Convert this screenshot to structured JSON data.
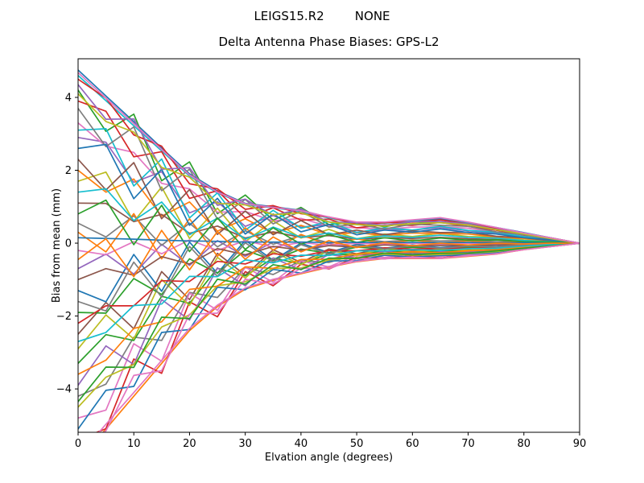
{
  "figure": {
    "suptitle": "LEIGS15.R2        NONE",
    "title": "Delta Antenna Phase Biases: GPS-L2",
    "xlabel": "Elvation angle (degrees)",
    "ylabel": "Bias from mean (mm)"
  },
  "chart_data": {
    "type": "line",
    "title": "Delta Antenna Phase Biases: GPS-L2",
    "suptitle": "LEIGS15.R2        NONE",
    "xlabel": "Elvation angle (degrees)",
    "ylabel": "Bias from mean (mm)",
    "xlim": [
      0,
      90
    ],
    "ylim": [
      -5.19,
      5.06
    ],
    "xticks": [
      0,
      10,
      20,
      30,
      40,
      50,
      60,
      70,
      80,
      90
    ],
    "xticklabels": [
      "0",
      "10",
      "20",
      "30",
      "40",
      "50",
      "60",
      "70",
      "80",
      "90"
    ],
    "yticks": [
      -4,
      -2,
      0,
      2,
      4
    ],
    "yticklabels": [
      "−4",
      "−2",
      "0",
      "2",
      "4"
    ],
    "grid": false,
    "legend": null,
    "frame_color": "#000000",
    "line_width": 1.7,
    "x": [
      0,
      5,
      10,
      15,
      20,
      25,
      30,
      35,
      40,
      45,
      50,
      55,
      60,
      65,
      70,
      75,
      80,
      85,
      90
    ],
    "series": [
      {
        "color": "#1f77b4",
        "y": [
          4.75,
          4.04,
          3.33,
          2.61,
          1.9,
          1.43,
          1.09,
          1.0,
          0.9,
          0.71,
          0.57,
          0.57,
          0.62,
          0.67,
          0.57,
          0.43,
          0.29,
          0.14,
          0
        ]
      },
      {
        "color": "#ff7f0e",
        "y": [
          -6.0,
          -5.1,
          -4.2,
          -3.3,
          -2.4,
          -1.74,
          -1.26,
          -1.02,
          -0.84,
          -0.66,
          -0.51,
          -0.42,
          -0.42,
          -0.42,
          -0.36,
          -0.3,
          -0.18,
          -0.09,
          0
        ]
      },
      {
        "color": "#2ca02c",
        "y": [
          4.2,
          3.07,
          3.54,
          1.71,
          2.23,
          0.81,
          1.32,
          0.63,
          0.98,
          0.51,
          0.58,
          0.45,
          0.59,
          0.56,
          0.52,
          0.36,
          0.26,
          0.12,
          0
        ]
      },
      {
        "color": "#d62728",
        "y": [
          -5.4,
          -5.09,
          -3.18,
          -3.57,
          -1.61,
          -2.02,
          -0.78,
          -1.17,
          -0.58,
          -0.71,
          -0.38,
          -0.43,
          -0.34,
          -0.41,
          -0.3,
          -0.29,
          -0.15,
          -0.09,
          0
        ]
      },
      {
        "color": "#9467bd",
        "y": [
          2.9,
          2.77,
          1.67,
          1.96,
          0.83,
          1.14,
          0.46,
          0.76,
          0.44,
          0.51,
          0.3,
          0.38,
          0.36,
          0.43,
          0.34,
          0.27,
          0.16,
          0.09,
          0
        ]
      },
      {
        "color": "#8c564b",
        "y": [
          -2.5,
          -1.63,
          -2.35,
          -0.78,
          -1.55,
          -0.28,
          -0.88,
          -0.18,
          -0.53,
          -0.16,
          -0.29,
          -0.13,
          -0.22,
          -0.15,
          -0.17,
          -0.11,
          -0.09,
          -0.03,
          0
        ]
      },
      {
        "color": "#e377c2",
        "y": [
          3.3,
          2.66,
          2.49,
          1.64,
          1.49,
          0.85,
          0.87,
          0.61,
          0.68,
          0.46,
          0.42,
          0.38,
          0.44,
          0.45,
          0.41,
          0.3,
          0.2,
          0.1,
          0
        ]
      },
      {
        "color": "#7f7f7f",
        "y": [
          -4.2,
          -3.87,
          -2.58,
          -2.67,
          -1.35,
          -1.49,
          -0.67,
          -0.86,
          -0.48,
          -0.53,
          -0.31,
          -0.32,
          -0.27,
          -0.31,
          -0.24,
          -0.22,
          -0.12,
          -0.06,
          0
        ]
      },
      {
        "color": "#bcbd22",
        "y": [
          1.7,
          1.95,
          0.59,
          1.54,
          0.13,
          0.96,
          0.04,
          0.61,
          0.14,
          0.38,
          0.12,
          0.25,
          0.18,
          0.27,
          0.18,
          0.17,
          0.09,
          0.06,
          0
        ]
      },
      {
        "color": "#17becf",
        "y": [
          4.6,
          3.91,
          3.22,
          2.53,
          1.84,
          1.38,
          1.06,
          0.97,
          0.87,
          0.69,
          0.55,
          0.55,
          0.6,
          0.64,
          0.55,
          0.41,
          0.28,
          0.14,
          0
        ]
      },
      {
        "color": "#1f77b4",
        "y": [
          -1.3,
          -1.61,
          -0.31,
          -1.32,
          0.03,
          -0.83,
          0.08,
          -0.47,
          0.0,
          -0.26,
          -0.03,
          -0.14,
          -0.05,
          -0.12,
          -0.06,
          -0.09,
          -0.03,
          -0.03,
          0
        ]
      },
      {
        "color": "#ff7f0e",
        "y": [
          2.0,
          1.4,
          1.76,
          0.74,
          1.13,
          0.33,
          0.67,
          0.27,
          0.49,
          0.23,
          0.29,
          0.21,
          0.28,
          0.26,
          0.25,
          0.17,
          0.13,
          0.06,
          0
        ]
      },
      {
        "color": "#2ca02c",
        "y": [
          -3.3,
          -2.51,
          -2.67,
          -1.46,
          -1.65,
          -0.69,
          -0.9,
          -0.41,
          -0.57,
          -0.29,
          -0.33,
          -0.2,
          -0.25,
          -0.21,
          -0.21,
          -0.16,
          -0.11,
          -0.05,
          0
        ]
      },
      {
        "color": "#d62728",
        "y": [
          3.9,
          3.62,
          2.37,
          2.51,
          1.23,
          1.44,
          0.69,
          0.97,
          0.63,
          0.66,
          0.42,
          0.5,
          0.49,
          0.57,
          0.46,
          0.36,
          0.22,
          0.12,
          0
        ]
      },
      {
        "color": "#9467bd",
        "y": [
          -0.7,
          -0.3,
          -0.85,
          -0.03,
          -0.61,
          0.07,
          -0.36,
          0.03,
          -0.21,
          -0.01,
          -0.11,
          -0.02,
          -0.07,
          -0.03,
          -0.05,
          -0.03,
          -0.03,
          -0.01,
          0
        ]
      },
      {
        "color": "#8c564b",
        "y": [
          1.1,
          1.09,
          0.59,
          0.79,
          0.27,
          0.47,
          0.14,
          0.31,
          0.16,
          0.21,
          0.11,
          0.15,
          0.13,
          0.16,
          0.12,
          0.1,
          0.07,
          0.03,
          0
        ]
      },
      {
        "color": "#e377c2",
        "y": [
          -4.8,
          -4.58,
          -2.76,
          -3.24,
          -1.37,
          -1.84,
          -0.66,
          -1.07,
          -0.49,
          -0.65,
          -0.33,
          -0.39,
          -0.3,
          -0.37,
          -0.27,
          -0.26,
          -0.13,
          -0.08,
          0
        ]
      },
      {
        "color": "#7f7f7f",
        "y": [
          0.55,
          0.17,
          0.75,
          -0.06,
          0.55,
          -0.1,
          0.34,
          -0.03,
          0.21,
          0.01,
          0.12,
          0.04,
          0.09,
          0.06,
          0.08,
          0.04,
          0.04,
          0.02,
          0
        ]
      },
      {
        "color": "#bcbd22",
        "y": [
          -2.9,
          -1.97,
          -2.63,
          -1.0,
          -1.71,
          -0.39,
          -0.96,
          -0.24,
          -0.59,
          -0.2,
          -0.33,
          -0.15,
          -0.24,
          -0.17,
          -0.19,
          -0.13,
          -0.1,
          -0.03,
          0
        ]
      },
      {
        "color": "#17becf",
        "y": [
          3.1,
          3.14,
          1.57,
          2.31,
          0.69,
          1.38,
          0.36,
          0.9,
          0.41,
          0.59,
          0.29,
          0.42,
          0.36,
          0.46,
          0.35,
          0.3,
          0.18,
          0.1,
          0
        ]
      },
      {
        "color": "#1f77b4",
        "y": [
          -5.1,
          -4.04,
          -3.93,
          -2.45,
          -2.37,
          -1.21,
          -1.28,
          -0.72,
          -0.82,
          -0.49,
          -0.48,
          -0.33,
          -0.38,
          -0.34,
          -0.32,
          -0.25,
          -0.16,
          -0.08,
          0
        ]
      },
      {
        "color": "#ff7f0e",
        "y": [
          0.3,
          -0.24,
          0.81,
          -0.43,
          0.67,
          -0.36,
          0.42,
          -0.19,
          0.24,
          -0.07,
          0.12,
          -0.01,
          0.08,
          0.01,
          0.06,
          0.01,
          0.03,
          0.0,
          0
        ]
      },
      {
        "color": "#2ca02c",
        "y": [
          -1.9,
          -1.92,
          -0.97,
          -1.41,
          -0.43,
          -0.82,
          -0.19,
          -0.47,
          -0.16,
          -0.28,
          -0.11,
          -0.16,
          -0.11,
          -0.15,
          -0.1,
          -0.11,
          -0.05,
          -0.03,
          0
        ]
      },
      {
        "color": "#d62728",
        "y": [
          4.5,
          3.98,
          2.97,
          2.66,
          1.63,
          1.49,
          0.93,
          1.03,
          0.81,
          0.72,
          0.52,
          0.56,
          0.58,
          0.64,
          0.53,
          0.41,
          0.27,
          0.14,
          0
        ]
      },
      {
        "color": "#9467bd",
        "y": [
          -3.9,
          -2.82,
          -3.33,
          -1.55,
          -2.11,
          -0.68,
          -1.17,
          -0.41,
          -0.73,
          -0.31,
          -0.41,
          -0.22,
          -0.31,
          -0.24,
          -0.25,
          -0.18,
          -0.13,
          -0.05,
          0
        ]
      },
      {
        "color": "#8c564b",
        "y": [
          2.3,
          1.46,
          2.21,
          0.67,
          1.47,
          0.24,
          0.88,
          0.23,
          0.62,
          0.23,
          0.36,
          0.23,
          0.34,
          0.29,
          0.3,
          0.19,
          0.15,
          0.06,
          0
        ]
      },
      {
        "color": "#e377c2",
        "y": [
          -0.2,
          -0.32,
          0.04,
          -0.29,
          0.09,
          -0.2,
          0.07,
          -0.11,
          0.02,
          -0.06,
          0.0,
          -0.03,
          0.0,
          -0.02,
          0.0,
          -0.01,
          -0.01,
          0.0,
          0
        ]
      },
      {
        "color": "#7f7f7f",
        "y": [
          3.7,
          2.65,
          3.19,
          1.44,
          2.03,
          0.66,
          1.2,
          0.53,
          0.88,
          0.44,
          0.52,
          0.39,
          0.52,
          0.49,
          0.46,
          0.31,
          0.23,
          0.1,
          0
        ]
      },
      {
        "color": "#bcbd22",
        "y": [
          -4.5,
          -3.68,
          -3.33,
          -2.3,
          -1.97,
          -1.17,
          -1.06,
          -0.69,
          -0.68,
          -0.46,
          -0.4,
          -0.3,
          -0.33,
          -0.31,
          -0.28,
          -0.23,
          -0.14,
          -0.07,
          0
        ]
      },
      {
        "color": "#17becf",
        "y": [
          1.4,
          1.49,
          0.62,
          1.13,
          0.23,
          0.69,
          0.11,
          0.44,
          0.16,
          0.28,
          0.12,
          0.2,
          0.16,
          0.22,
          0.16,
          0.14,
          0.07,
          0.04,
          0
        ]
      },
      {
        "color": "#1f77b4",
        "y": [
          2.6,
          2.71,
          1.22,
          2.03,
          0.49,
          1.23,
          0.25,
          0.8,
          0.31,
          0.51,
          0.23,
          0.36,
          0.3,
          0.39,
          0.29,
          0.25,
          0.15,
          0.09,
          0
        ]
      },
      {
        "color": "#ff7f0e",
        "y": [
          -3.6,
          -3.21,
          -2.34,
          -2.16,
          -1.27,
          -1.18,
          -0.65,
          -0.69,
          -0.45,
          -0.44,
          -0.29,
          -0.27,
          -0.24,
          -0.26,
          -0.21,
          -0.18,
          -0.11,
          -0.05,
          0
        ]
      },
      {
        "color": "#2ca02c",
        "y": [
          0.8,
          1.18,
          -0.04,
          1.04,
          -0.23,
          0.69,
          -0.17,
          0.42,
          -0.03,
          0.24,
          0.02,
          0.15,
          0.06,
          0.14,
          0.08,
          0.09,
          0.04,
          0.03,
          0
        ]
      },
      {
        "color": "#d62728",
        "y": [
          -2.2,
          -1.72,
          -1.72,
          -1.03,
          -1.05,
          -0.5,
          -0.57,
          -0.29,
          -0.36,
          -0.2,
          -0.21,
          -0.13,
          -0.16,
          -0.14,
          -0.14,
          -0.11,
          -0.07,
          -0.03,
          0
        ]
      },
      {
        "color": "#9467bd",
        "y": [
          4.35,
          3.4,
          3.41,
          2.03,
          2.07,
          1.04,
          1.21,
          0.76,
          0.94,
          0.58,
          0.57,
          0.49,
          0.59,
          0.59,
          0.53,
          0.38,
          0.27,
          0.13,
          0
        ]
      },
      {
        "color": "#8c564b",
        "y": [
          -1.0,
          -0.7,
          -0.88,
          -0.37,
          -0.57,
          -0.15,
          -0.32,
          -0.09,
          -0.19,
          -0.07,
          -0.11,
          -0.05,
          -0.08,
          -0.06,
          -0.07,
          -0.05,
          -0.03,
          -0.02,
          0
        ]
      },
      {
        "color": "#e377c2",
        "y": [
          -5.7,
          -5.15,
          -3.63,
          -3.5,
          -1.95,
          -1.92,
          -0.99,
          -1.12,
          -0.69,
          -0.7,
          -0.43,
          -0.43,
          -0.38,
          -0.42,
          -0.33,
          -0.3,
          -0.16,
          -0.09,
          0
        ]
      },
      {
        "color": "#7f7f7f",
        "y": [
          -1.6,
          -1.86,
          -0.52,
          -1.48,
          -0.09,
          -0.91,
          0.01,
          -0.52,
          -0.04,
          -0.3,
          -0.06,
          -0.16,
          -0.07,
          -0.14,
          -0.08,
          -0.1,
          -0.04,
          -0.03,
          0
        ]
      },
      {
        "color": "#bcbd22",
        "y": [
          4.1,
          3.34,
          3.05,
          2.08,
          1.81,
          1.09,
          1.05,
          0.78,
          0.83,
          0.58,
          0.51,
          0.47,
          0.54,
          0.56,
          0.5,
          0.37,
          0.25,
          0.12,
          0
        ]
      },
      {
        "color": "#17becf",
        "y": [
          -2.7,
          -2.45,
          -1.71,
          -1.67,
          -0.91,
          -0.92,
          -0.46,
          -0.54,
          -0.33,
          -0.34,
          -0.21,
          -0.21,
          -0.18,
          -0.2,
          -0.15,
          -0.14,
          -0.08,
          -0.04,
          0
        ]
      },
      {
        "color": "#1f77b4",
        "y": [
          0.15,
          0.13,
          0.11,
          0.08,
          0.06,
          0.05,
          0.03,
          0.03,
          0.03,
          0.02,
          0.02,
          0.02,
          0.02,
          0.02,
          0.02,
          0.01,
          0.01,
          0.0,
          0
        ]
      },
      {
        "color": "#ff7f0e",
        "y": [
          -0.45,
          0.12,
          -0.92,
          0.35,
          -0.73,
          0.32,
          -0.44,
          0.17,
          -0.24,
          0.07,
          -0.12,
          0.02,
          -0.07,
          0.0,
          -0.05,
          0.0,
          -0.02,
          0.0,
          0
        ]
      },
      {
        "color": "#2ca02c",
        "y": [
          -4.35,
          -3.4,
          -3.41,
          -2.03,
          -2.07,
          -0.99,
          -1.12,
          -0.59,
          -0.72,
          -0.41,
          -0.42,
          -0.27,
          -0.32,
          -0.28,
          -0.27,
          -0.21,
          -0.14,
          -0.07,
          0
        ]
      },
      {
        "color": "#e377c2",
        "y": [
          4.68,
          3.98,
          3.28,
          2.57,
          1.87,
          1.4,
          1.08,
          0.98,
          0.89,
          0.72,
          0.58,
          0.58,
          0.64,
          0.7,
          0.58,
          0.43,
          0.28,
          0.14,
          0
        ]
      },
      {
        "color": "#e377c2",
        "y": [
          -5.85,
          -4.97,
          -4.1,
          -3.22,
          -2.34,
          -1.7,
          -1.23,
          -0.99,
          -0.82,
          -0.64,
          -0.5,
          -0.41,
          -0.41,
          -0.41,
          -0.35,
          -0.29,
          -0.18,
          -0.09,
          0
        ]
      }
    ]
  }
}
